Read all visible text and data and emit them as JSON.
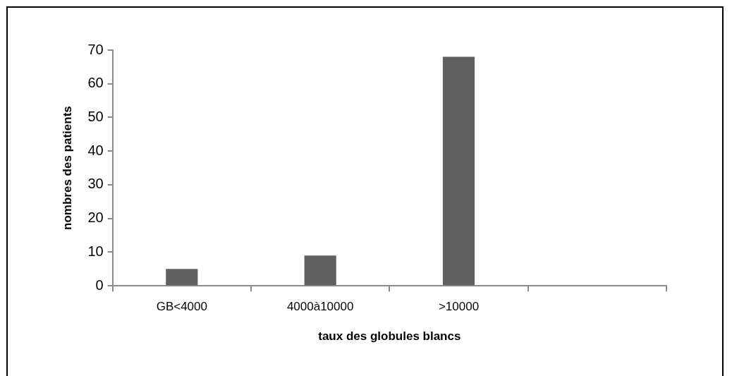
{
  "chart_data": {
    "type": "bar",
    "xlabel": "taux des globules blancs",
    "ylabel": "nombres des patients",
    "categories": [
      "GB<4000",
      "4000à10000",
      ">10000",
      null
    ],
    "values": [
      5,
      9,
      68,
      null
    ],
    "color": "#606060",
    "ylim": [
      0,
      70
    ],
    "yticks": [
      0,
      10,
      20,
      30,
      40,
      50,
      60,
      70
    ]
  }
}
